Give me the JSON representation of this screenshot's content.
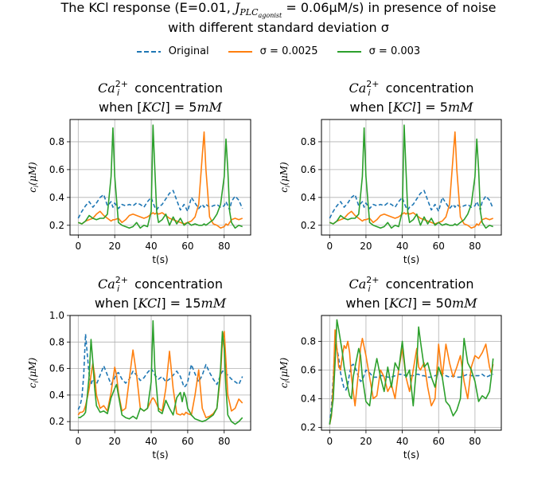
{
  "figure": {
    "suptitle_line1_prefix": "The KCl response (E=0.01, ",
    "suptitle_line1_math": "J",
    "suptitle_line1_sub": "PLC",
    "suptitle_line1_subsub": "agonist",
    "suptitle_line1_suffix": " = 0.06μM/s) in presence of noise",
    "suptitle_line2": "with different standard deviation σ",
    "legend": [
      {
        "label": "Original",
        "color": "#1f77b4",
        "style": "dashed"
      },
      {
        "label": "σ = 0.0025",
        "color": "#ff7f0e",
        "style": "solid"
      },
      {
        "label": "σ = 0.003",
        "color": "#2ca02c",
        "style": "solid"
      }
    ]
  },
  "chart_data": [
    {
      "type": "line",
      "title_line1": "Ca_i^{2+} concentration",
      "title_line2": "when [KCl] = 5mM",
      "xlabel": "t(s)",
      "ylabel": "c_i(μM)",
      "xlim": [
        -4.5,
        94.5
      ],
      "ylim": [
        0.13,
        0.96
      ],
      "xticks": [
        0,
        20,
        40,
        60,
        80
      ],
      "yticks": [
        0.2,
        0.4,
        0.6,
        0.8
      ],
      "ytick_labels": [
        "0.2",
        "0.4",
        "0.6",
        "0.8"
      ],
      "grid": true,
      "x": [
        0,
        2,
        4,
        6,
        8,
        10,
        12,
        14,
        16,
        18,
        19,
        20,
        22,
        24,
        26,
        28,
        30,
        32,
        34,
        36,
        38,
        40,
        41,
        42,
        43,
        44,
        46,
        48,
        50,
        52,
        54,
        56,
        58,
        60,
        62,
        64,
        66,
        68,
        69,
        70,
        72,
        74,
        76,
        78,
        80,
        81,
        82,
        83,
        84,
        86,
        88,
        90
      ],
      "series": [
        {
          "name": "Original",
          "color": "#1f77b4",
          "style": "dashed",
          "values": [
            0.25,
            0.3,
            0.34,
            0.37,
            0.33,
            0.36,
            0.4,
            0.42,
            0.34,
            0.37,
            0.33,
            0.36,
            0.32,
            0.35,
            0.34,
            0.35,
            0.34,
            0.36,
            0.35,
            0.33,
            0.37,
            0.4,
            0.36,
            0.33,
            0.31,
            0.33,
            0.35,
            0.39,
            0.43,
            0.45,
            0.38,
            0.31,
            0.35,
            0.3,
            0.4,
            0.36,
            0.32,
            0.35,
            0.33,
            0.35,
            0.33,
            0.34,
            0.35,
            0.33,
            0.34,
            0.37,
            0.34,
            0.31,
            0.37,
            0.41,
            0.38,
            0.32
          ]
        },
        {
          "name": "σ = 0.0025",
          "color": "#ff7f0e",
          "style": "solid",
          "values": [
            0.22,
            0.21,
            0.23,
            0.24,
            0.25,
            0.28,
            0.3,
            0.27,
            0.25,
            0.23,
            0.24,
            0.24,
            0.25,
            0.22,
            0.24,
            0.27,
            0.28,
            0.27,
            0.26,
            0.25,
            0.26,
            0.28,
            0.29,
            0.28,
            0.29,
            0.28,
            0.29,
            0.27,
            0.25,
            0.24,
            0.23,
            0.22,
            0.21,
            0.22,
            0.23,
            0.26,
            0.35,
            0.7,
            0.87,
            0.6,
            0.26,
            0.21,
            0.2,
            0.18,
            0.19,
            0.21,
            0.2,
            0.22,
            0.24,
            0.25,
            0.24,
            0.25
          ]
        },
        {
          "name": "σ = 0.003",
          "color": "#2ca02c",
          "style": "solid",
          "values": [
            0.22,
            0.21,
            0.23,
            0.27,
            0.25,
            0.24,
            0.25,
            0.25,
            0.28,
            0.55,
            0.9,
            0.55,
            0.22,
            0.2,
            0.19,
            0.18,
            0.19,
            0.22,
            0.18,
            0.2,
            0.19,
            0.3,
            0.92,
            0.6,
            0.3,
            0.22,
            0.24,
            0.28,
            0.2,
            0.26,
            0.21,
            0.25,
            0.2,
            0.22,
            0.2,
            0.21,
            0.2,
            0.2,
            0.21,
            0.2,
            0.22,
            0.24,
            0.28,
            0.35,
            0.55,
            0.82,
            0.6,
            0.3,
            0.22,
            0.18,
            0.2,
            0.19
          ]
        }
      ]
    },
    {
      "type": "line",
      "title_line1": "Ca_i^{2+} concentration",
      "title_line2": "when [KCl] = 5mM",
      "xlabel": "t(s)",
      "ylabel": "c_i(μM)",
      "xlim": [
        -4.5,
        94.5
      ],
      "ylim": [
        0.13,
        0.96
      ],
      "xticks": [
        0,
        20,
        40,
        60,
        80
      ],
      "yticks": [
        0.2,
        0.4,
        0.6,
        0.8
      ],
      "ytick_labels": [
        "0.2",
        "0.4",
        "0.6",
        "0.8"
      ],
      "grid": true,
      "x": [
        0,
        2,
        4,
        6,
        8,
        10,
        12,
        14,
        16,
        18,
        19,
        20,
        22,
        24,
        26,
        28,
        30,
        32,
        34,
        36,
        38,
        40,
        41,
        42,
        43,
        44,
        46,
        48,
        50,
        52,
        54,
        56,
        58,
        60,
        62,
        64,
        66,
        68,
        69,
        70,
        72,
        74,
        76,
        78,
        80,
        81,
        82,
        83,
        84,
        86,
        88,
        90
      ],
      "series": [
        {
          "name": "Original",
          "color": "#1f77b4",
          "style": "dashed",
          "values": [
            0.25,
            0.3,
            0.34,
            0.37,
            0.33,
            0.36,
            0.4,
            0.42,
            0.34,
            0.37,
            0.33,
            0.36,
            0.32,
            0.35,
            0.34,
            0.35,
            0.34,
            0.36,
            0.35,
            0.33,
            0.37,
            0.4,
            0.36,
            0.33,
            0.31,
            0.33,
            0.35,
            0.39,
            0.43,
            0.45,
            0.38,
            0.31,
            0.35,
            0.3,
            0.4,
            0.36,
            0.32,
            0.35,
            0.33,
            0.35,
            0.33,
            0.34,
            0.35,
            0.33,
            0.34,
            0.37,
            0.34,
            0.31,
            0.37,
            0.41,
            0.38,
            0.32
          ]
        },
        {
          "name": "σ = 0.0025",
          "color": "#ff7f0e",
          "style": "solid",
          "values": [
            0.22,
            0.21,
            0.23,
            0.24,
            0.25,
            0.28,
            0.3,
            0.27,
            0.25,
            0.23,
            0.24,
            0.24,
            0.25,
            0.22,
            0.24,
            0.27,
            0.28,
            0.27,
            0.26,
            0.25,
            0.26,
            0.28,
            0.29,
            0.28,
            0.29,
            0.28,
            0.29,
            0.27,
            0.25,
            0.24,
            0.23,
            0.22,
            0.21,
            0.22,
            0.23,
            0.26,
            0.35,
            0.7,
            0.87,
            0.6,
            0.26,
            0.21,
            0.2,
            0.18,
            0.19,
            0.21,
            0.2,
            0.22,
            0.24,
            0.25,
            0.24,
            0.25
          ]
        },
        {
          "name": "σ = 0.003",
          "color": "#2ca02c",
          "style": "solid",
          "values": [
            0.22,
            0.21,
            0.23,
            0.27,
            0.25,
            0.24,
            0.25,
            0.25,
            0.28,
            0.55,
            0.9,
            0.55,
            0.22,
            0.2,
            0.19,
            0.18,
            0.19,
            0.22,
            0.18,
            0.2,
            0.19,
            0.3,
            0.92,
            0.6,
            0.3,
            0.22,
            0.24,
            0.28,
            0.2,
            0.26,
            0.21,
            0.25,
            0.2,
            0.22,
            0.2,
            0.21,
            0.2,
            0.2,
            0.21,
            0.2,
            0.22,
            0.24,
            0.28,
            0.35,
            0.55,
            0.82,
            0.6,
            0.3,
            0.22,
            0.18,
            0.2,
            0.19
          ]
        }
      ]
    },
    {
      "type": "line",
      "title_line1": "Ca_i^{2+} concentration",
      "title_line2": "when [KCl] = 15mM",
      "xlabel": "t(s)",
      "ylabel": "c_i(μM)",
      "xlim": [
        -4.5,
        94.5
      ],
      "ylim": [
        0.135,
        1.0
      ],
      "xticks": [
        0,
        20,
        40,
        60,
        80
      ],
      "yticks": [
        0.2,
        0.4,
        0.6,
        0.8,
        1.0
      ],
      "ytick_labels": [
        "0.2",
        "0.4",
        "0.6",
        "0.8",
        "1.0"
      ],
      "grid": true,
      "x": [
        0,
        1,
        2,
        3,
        4,
        5,
        6,
        7,
        8,
        9,
        10,
        12,
        14,
        16,
        18,
        20,
        21,
        22,
        24,
        26,
        28,
        30,
        32,
        34,
        36,
        38,
        40,
        41,
        42,
        44,
        46,
        48,
        50,
        52,
        54,
        56,
        57,
        58,
        59,
        60,
        62,
        64,
        66,
        68,
        70,
        72,
        74,
        76,
        78,
        79,
        80,
        81,
        82,
        84,
        86,
        88,
        90
      ],
      "series": [
        {
          "name": "Original",
          "color": "#1f77b4",
          "style": "dashed",
          "values": [
            0.29,
            0.32,
            0.38,
            0.55,
            0.86,
            0.7,
            0.55,
            0.48,
            0.52,
            0.5,
            0.48,
            0.55,
            0.62,
            0.55,
            0.48,
            0.53,
            0.56,
            0.57,
            0.52,
            0.49,
            0.52,
            0.58,
            0.55,
            0.51,
            0.53,
            0.57,
            0.6,
            0.58,
            0.55,
            0.52,
            0.54,
            0.5,
            0.52,
            0.55,
            0.58,
            0.54,
            0.5,
            0.46,
            0.47,
            0.5,
            0.63,
            0.56,
            0.5,
            0.55,
            0.63,
            0.57,
            0.52,
            0.48,
            0.55,
            0.58,
            0.58,
            0.56,
            0.55,
            0.52,
            0.5,
            0.48,
            0.54
          ]
        },
        {
          "name": "σ = 0.0025",
          "color": "#ff7f0e",
          "style": "solid",
          "values": [
            0.25,
            0.27,
            0.27,
            0.28,
            0.32,
            0.38,
            0.45,
            0.55,
            0.64,
            0.55,
            0.4,
            0.3,
            0.32,
            0.28,
            0.42,
            0.61,
            0.55,
            0.42,
            0.28,
            0.3,
            0.52,
            0.74,
            0.55,
            0.3,
            0.28,
            0.3,
            0.36,
            0.38,
            0.36,
            0.3,
            0.28,
            0.45,
            0.73,
            0.45,
            0.26,
            0.25,
            0.26,
            0.25,
            0.27,
            0.26,
            0.25,
            0.4,
            0.59,
            0.3,
            0.23,
            0.24,
            0.26,
            0.3,
            0.55,
            0.8,
            0.88,
            0.65,
            0.4,
            0.28,
            0.3,
            0.37,
            0.34
          ]
        },
        {
          "name": "σ = 0.003",
          "color": "#2ca02c",
          "style": "solid",
          "values": [
            0.23,
            0.23,
            0.24,
            0.25,
            0.27,
            0.4,
            0.55,
            0.82,
            0.65,
            0.45,
            0.32,
            0.27,
            0.28,
            0.26,
            0.38,
            0.45,
            0.48,
            0.4,
            0.25,
            0.23,
            0.22,
            0.24,
            0.22,
            0.3,
            0.28,
            0.3,
            0.5,
            0.96,
            0.6,
            0.28,
            0.26,
            0.36,
            0.3,
            0.25,
            0.38,
            0.42,
            0.35,
            0.42,
            0.38,
            0.3,
            0.25,
            0.22,
            0.21,
            0.2,
            0.21,
            0.23,
            0.25,
            0.3,
            0.6,
            0.88,
            0.75,
            0.45,
            0.25,
            0.2,
            0.18,
            0.2,
            0.23
          ]
        }
      ]
    },
    {
      "type": "line",
      "title_line1": "Ca_i^{2+} concentration",
      "title_line2": "when [KCl] = 50mM",
      "xlabel": "t(s)",
      "ylabel": "c_i(μM)",
      "xlim": [
        -4.5,
        94.5
      ],
      "ylim": [
        0.18,
        0.98
      ],
      "xticks": [
        0,
        20,
        40,
        60,
        80
      ],
      "yticks": [
        0.2,
        0.4,
        0.6,
        0.8
      ],
      "ytick_labels": [
        "0.2",
        "0.4",
        "0.6",
        "0.8"
      ],
      "grid": true,
      "x": [
        0,
        1,
        2,
        3,
        4,
        5,
        6,
        7,
        8,
        9,
        10,
        11,
        12,
        13,
        14,
        16,
        17,
        18,
        20,
        22,
        24,
        26,
        28,
        30,
        32,
        34,
        36,
        38,
        40,
        42,
        44,
        46,
        48,
        49,
        50,
        52,
        54,
        56,
        58,
        60,
        62,
        64,
        66,
        68,
        70,
        72,
        74,
        76,
        78,
        80,
        82,
        84,
        86,
        88,
        89,
        90
      ],
      "series": [
        {
          "name": "Original",
          "color": "#1f77b4",
          "style": "dashed",
          "values": [
            0.22,
            0.35,
            0.55,
            0.78,
            0.75,
            0.68,
            0.58,
            0.52,
            0.47,
            0.46,
            0.5,
            0.58,
            0.63,
            0.64,
            0.62,
            0.55,
            0.52,
            0.53,
            0.6,
            0.58,
            0.55,
            0.55,
            0.56,
            0.56,
            0.55,
            0.55,
            0.56,
            0.57,
            0.57,
            0.56,
            0.56,
            0.56,
            0.57,
            0.57,
            0.56,
            0.56,
            0.55,
            0.55,
            0.56,
            0.57,
            0.58,
            0.56,
            0.55,
            0.56,
            0.55,
            0.55,
            0.56,
            0.57,
            0.56,
            0.56,
            0.56,
            0.57,
            0.55,
            0.56,
            0.57,
            0.57
          ]
        },
        {
          "name": "σ = 0.0025",
          "color": "#ff7f0e",
          "style": "solid",
          "values": [
            0.22,
            0.28,
            0.5,
            0.88,
            0.75,
            0.62,
            0.6,
            0.7,
            0.77,
            0.75,
            0.8,
            0.72,
            0.55,
            0.45,
            0.35,
            0.6,
            0.75,
            0.82,
            0.7,
            0.55,
            0.4,
            0.42,
            0.6,
            0.55,
            0.45,
            0.5,
            0.4,
            0.6,
            0.75,
            0.55,
            0.45,
            0.6,
            0.75,
            0.62,
            0.6,
            0.65,
            0.48,
            0.35,
            0.4,
            0.78,
            0.55,
            0.78,
            0.65,
            0.55,
            0.62,
            0.7,
            0.52,
            0.4,
            0.62,
            0.7,
            0.68,
            0.72,
            0.78,
            0.62,
            0.58,
            0.64
          ]
        },
        {
          "name": "σ = 0.003",
          "color": "#2ca02c",
          "style": "solid",
          "values": [
            0.22,
            0.3,
            0.4,
            0.65,
            0.95,
            0.88,
            0.8,
            0.72,
            0.62,
            0.55,
            0.48,
            0.42,
            0.4,
            0.55,
            0.62,
            0.75,
            0.7,
            0.55,
            0.38,
            0.35,
            0.55,
            0.68,
            0.55,
            0.45,
            0.62,
            0.48,
            0.65,
            0.6,
            0.8,
            0.55,
            0.6,
            0.35,
            0.65,
            0.9,
            0.8,
            0.62,
            0.65,
            0.55,
            0.48,
            0.62,
            0.55,
            0.38,
            0.35,
            0.28,
            0.32,
            0.4,
            0.82,
            0.65,
            0.6,
            0.52,
            0.38,
            0.42,
            0.4,
            0.45,
            0.55,
            0.68
          ]
        }
      ]
    }
  ]
}
